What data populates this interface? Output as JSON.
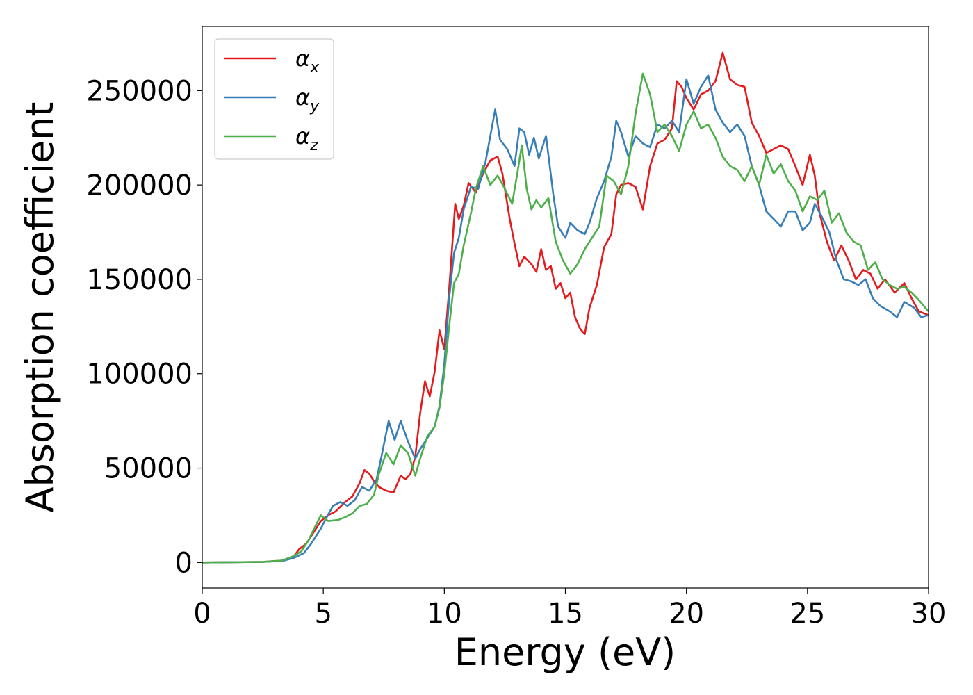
{
  "chart_data": {
    "type": "line",
    "title": "",
    "xlabel": "Energy (eV)",
    "ylabel": "Absorption coefficient",
    "xlim": [
      0,
      30
    ],
    "ylim": [
      -13500,
      284000
    ],
    "xticks": [
      0,
      5,
      10,
      15,
      20,
      25,
      30
    ],
    "yticks": [
      0,
      50000,
      100000,
      150000,
      200000,
      250000
    ],
    "grid": false,
    "legend_position": "upper-left",
    "series": [
      {
        "name": "αx",
        "label_base": "α",
        "label_sub": "x",
        "color": "#e41a1c",
        "points": [
          [
            0,
            0
          ],
          [
            2.5,
            300
          ],
          [
            3.3,
            1000
          ],
          [
            3.8,
            3500
          ],
          [
            4.0,
            7000
          ],
          [
            4.3,
            10000
          ],
          [
            4.6,
            16000
          ],
          [
            4.9,
            22000
          ],
          [
            5.2,
            25000
          ],
          [
            5.5,
            27000
          ],
          [
            5.9,
            32000
          ],
          [
            6.2,
            35000
          ],
          [
            6.5,
            42000
          ],
          [
            6.7,
            49000
          ],
          [
            6.9,
            47000
          ],
          [
            7.1,
            43000
          ],
          [
            7.3,
            40000
          ],
          [
            7.6,
            38000
          ],
          [
            7.9,
            37000
          ],
          [
            8.2,
            46000
          ],
          [
            8.4,
            44000
          ],
          [
            8.6,
            47000
          ],
          [
            8.8,
            56000
          ],
          [
            9.0,
            79000
          ],
          [
            9.2,
            96000
          ],
          [
            9.4,
            88000
          ],
          [
            9.6,
            101000
          ],
          [
            9.8,
            123000
          ],
          [
            10.0,
            113000
          ],
          [
            10.2,
            145000
          ],
          [
            10.45,
            190000
          ],
          [
            10.6,
            182000
          ],
          [
            10.8,
            189000
          ],
          [
            11.0,
            201000
          ],
          [
            11.3,
            196000
          ],
          [
            11.6,
            206000
          ],
          [
            11.9,
            213000
          ],
          [
            12.2,
            215000
          ],
          [
            12.4,
            206000
          ],
          [
            12.7,
            182000
          ],
          [
            12.9,
            169000
          ],
          [
            13.1,
            157000
          ],
          [
            13.3,
            162000
          ],
          [
            13.6,
            158000
          ],
          [
            13.8,
            154000
          ],
          [
            14.0,
            166000
          ],
          [
            14.2,
            155000
          ],
          [
            14.4,
            157000
          ],
          [
            14.6,
            145000
          ],
          [
            14.8,
            148000
          ],
          [
            15.0,
            140000
          ],
          [
            15.2,
            143000
          ],
          [
            15.4,
            130000
          ],
          [
            15.6,
            124000
          ],
          [
            15.8,
            121000
          ],
          [
            16.0,
            135000
          ],
          [
            16.3,
            147000
          ],
          [
            16.6,
            167000
          ],
          [
            16.9,
            174000
          ],
          [
            17.1,
            195000
          ],
          [
            17.3,
            200000
          ],
          [
            17.6,
            201000
          ],
          [
            17.9,
            199000
          ],
          [
            18.2,
            187000
          ],
          [
            18.5,
            210000
          ],
          [
            18.8,
            222000
          ],
          [
            19.1,
            224000
          ],
          [
            19.4,
            230000
          ],
          [
            19.6,
            255000
          ],
          [
            19.8,
            252000
          ],
          [
            20.0,
            246000
          ],
          [
            20.3,
            240000
          ],
          [
            20.6,
            248000
          ],
          [
            20.9,
            250000
          ],
          [
            21.2,
            255000
          ],
          [
            21.5,
            270000
          ],
          [
            21.8,
            256000
          ],
          [
            22.1,
            253000
          ],
          [
            22.4,
            252000
          ],
          [
            22.7,
            233000
          ],
          [
            23.0,
            226000
          ],
          [
            23.3,
            217000
          ],
          [
            23.6,
            219000
          ],
          [
            23.9,
            221000
          ],
          [
            24.2,
            219000
          ],
          [
            24.5,
            210000
          ],
          [
            24.8,
            200000
          ],
          [
            25.1,
            216000
          ],
          [
            25.3,
            205000
          ],
          [
            25.5,
            185000
          ],
          [
            25.8,
            170000
          ],
          [
            26.1,
            160000
          ],
          [
            26.4,
            168000
          ],
          [
            26.7,
            160000
          ],
          [
            27.0,
            150000
          ],
          [
            27.3,
            155000
          ],
          [
            27.6,
            153000
          ],
          [
            27.9,
            145000
          ],
          [
            28.2,
            150000
          ],
          [
            28.6,
            143000
          ],
          [
            29.0,
            148000
          ],
          [
            29.3,
            140000
          ],
          [
            29.6,
            133000
          ],
          [
            30.0,
            131000
          ]
        ]
      },
      {
        "name": "αy",
        "label_base": "α",
        "label_sub": "y",
        "color": "#377eb8",
        "points": [
          [
            0,
            0
          ],
          [
            2.5,
            300
          ],
          [
            3.3,
            800
          ],
          [
            3.8,
            2500
          ],
          [
            4.2,
            5000
          ],
          [
            4.5,
            10000
          ],
          [
            4.9,
            18000
          ],
          [
            5.1,
            23000
          ],
          [
            5.4,
            30000
          ],
          [
            5.7,
            32000
          ],
          [
            6.0,
            30000
          ],
          [
            6.3,
            33000
          ],
          [
            6.6,
            40000
          ],
          [
            6.9,
            38000
          ],
          [
            7.2,
            44000
          ],
          [
            7.4,
            56000
          ],
          [
            7.7,
            75000
          ],
          [
            7.95,
            65000
          ],
          [
            8.2,
            75000
          ],
          [
            8.5,
            64000
          ],
          [
            8.8,
            55000
          ],
          [
            9.0,
            60000
          ],
          [
            9.3,
            66000
          ],
          [
            9.6,
            72000
          ],
          [
            9.8,
            83000
          ],
          [
            10.0,
            105000
          ],
          [
            10.2,
            140000
          ],
          [
            10.4,
            164000
          ],
          [
            10.6,
            172000
          ],
          [
            10.8,
            187000
          ],
          [
            11.1,
            199000
          ],
          [
            11.4,
            198000
          ],
          [
            11.7,
            212000
          ],
          [
            11.9,
            226000
          ],
          [
            12.1,
            240000
          ],
          [
            12.3,
            224000
          ],
          [
            12.6,
            219000
          ],
          [
            12.9,
            210000
          ],
          [
            13.1,
            230000
          ],
          [
            13.3,
            228000
          ],
          [
            13.5,
            216000
          ],
          [
            13.7,
            225000
          ],
          [
            13.9,
            214000
          ],
          [
            14.2,
            226000
          ],
          [
            14.5,
            195000
          ],
          [
            14.7,
            178000
          ],
          [
            15.0,
            172000
          ],
          [
            15.2,
            180000
          ],
          [
            15.5,
            176000
          ],
          [
            15.8,
            174000
          ],
          [
            16.0,
            180000
          ],
          [
            16.3,
            193000
          ],
          [
            16.6,
            202000
          ],
          [
            16.9,
            215000
          ],
          [
            17.1,
            234000
          ],
          [
            17.3,
            228000
          ],
          [
            17.6,
            215000
          ],
          [
            17.9,
            226000
          ],
          [
            18.2,
            222000
          ],
          [
            18.5,
            220000
          ],
          [
            18.8,
            232000
          ],
          [
            19.1,
            230000
          ],
          [
            19.4,
            234000
          ],
          [
            19.7,
            228000
          ],
          [
            20.0,
            256000
          ],
          [
            20.3,
            243000
          ],
          [
            20.6,
            252000
          ],
          [
            20.9,
            258000
          ],
          [
            21.2,
            240000
          ],
          [
            21.5,
            233000
          ],
          [
            21.8,
            228000
          ],
          [
            22.1,
            232000
          ],
          [
            22.4,
            226000
          ],
          [
            22.7,
            210000
          ],
          [
            23.0,
            200000
          ],
          [
            23.3,
            186000
          ],
          [
            23.6,
            182000
          ],
          [
            23.9,
            178000
          ],
          [
            24.2,
            186000
          ],
          [
            24.5,
            186000
          ],
          [
            24.8,
            176000
          ],
          [
            25.1,
            180000
          ],
          [
            25.3,
            190000
          ],
          [
            25.6,
            183000
          ],
          [
            25.9,
            175000
          ],
          [
            26.2,
            160000
          ],
          [
            26.5,
            150000
          ],
          [
            26.8,
            149000
          ],
          [
            27.1,
            147000
          ],
          [
            27.4,
            150000
          ],
          [
            27.7,
            140000
          ],
          [
            28.0,
            136000
          ],
          [
            28.4,
            133000
          ],
          [
            28.7,
            130000
          ],
          [
            29.0,
            138000
          ],
          [
            29.4,
            135000
          ],
          [
            29.7,
            130000
          ],
          [
            30.0,
            131000
          ]
        ]
      },
      {
        "name": "αz",
        "label_base": "α",
        "label_sub": "z",
        "color": "#4daf4a",
        "points": [
          [
            0,
            0
          ],
          [
            2.5,
            300
          ],
          [
            3.3,
            1000
          ],
          [
            3.8,
            3500
          ],
          [
            4.1,
            6000
          ],
          [
            4.4,
            12000
          ],
          [
            4.7,
            20000
          ],
          [
            4.9,
            25000
          ],
          [
            5.2,
            22000
          ],
          [
            5.6,
            22500
          ],
          [
            5.9,
            24000
          ],
          [
            6.2,
            26000
          ],
          [
            6.5,
            30000
          ],
          [
            6.8,
            31000
          ],
          [
            7.1,
            36000
          ],
          [
            7.3,
            47000
          ],
          [
            7.6,
            58000
          ],
          [
            7.9,
            52000
          ],
          [
            8.2,
            62000
          ],
          [
            8.5,
            58000
          ],
          [
            8.8,
            46000
          ],
          [
            9.0,
            55000
          ],
          [
            9.3,
            67000
          ],
          [
            9.6,
            72000
          ],
          [
            9.8,
            82000
          ],
          [
            10.0,
            100000
          ],
          [
            10.2,
            125000
          ],
          [
            10.4,
            148000
          ],
          [
            10.6,
            153000
          ],
          [
            10.8,
            168000
          ],
          [
            11.1,
            185000
          ],
          [
            11.3,
            198000
          ],
          [
            11.6,
            210000
          ],
          [
            11.9,
            200000
          ],
          [
            12.2,
            205000
          ],
          [
            12.5,
            198000
          ],
          [
            12.8,
            190000
          ],
          [
            13.0,
            205000
          ],
          [
            13.2,
            221000
          ],
          [
            13.4,
            198000
          ],
          [
            13.6,
            187000
          ],
          [
            13.8,
            192000
          ],
          [
            14.0,
            188000
          ],
          [
            14.3,
            193000
          ],
          [
            14.6,
            170000
          ],
          [
            14.9,
            160000
          ],
          [
            15.2,
            153000
          ],
          [
            15.5,
            158000
          ],
          [
            15.8,
            166000
          ],
          [
            16.1,
            172000
          ],
          [
            16.4,
            178000
          ],
          [
            16.7,
            205000
          ],
          [
            17.0,
            202000
          ],
          [
            17.3,
            195000
          ],
          [
            17.6,
            210000
          ],
          [
            17.9,
            238000
          ],
          [
            18.2,
            259000
          ],
          [
            18.5,
            248000
          ],
          [
            18.8,
            228000
          ],
          [
            19.1,
            232000
          ],
          [
            19.4,
            226000
          ],
          [
            19.7,
            218000
          ],
          [
            20.0,
            232000
          ],
          [
            20.3,
            239000
          ],
          [
            20.6,
            230000
          ],
          [
            20.9,
            232000
          ],
          [
            21.2,
            225000
          ],
          [
            21.5,
            215000
          ],
          [
            21.8,
            210000
          ],
          [
            22.1,
            208000
          ],
          [
            22.4,
            202000
          ],
          [
            22.7,
            210000
          ],
          [
            23.0,
            200000
          ],
          [
            23.3,
            216000
          ],
          [
            23.6,
            206000
          ],
          [
            23.9,
            211000
          ],
          [
            24.2,
            202000
          ],
          [
            24.5,
            197000
          ],
          [
            24.8,
            186000
          ],
          [
            25.1,
            194000
          ],
          [
            25.4,
            192000
          ],
          [
            25.7,
            197000
          ],
          [
            26.0,
            180000
          ],
          [
            26.3,
            185000
          ],
          [
            26.6,
            175000
          ],
          [
            26.9,
            170000
          ],
          [
            27.2,
            168000
          ],
          [
            27.5,
            155000
          ],
          [
            27.8,
            159000
          ],
          [
            28.1,
            150000
          ],
          [
            28.4,
            147000
          ],
          [
            28.7,
            145000
          ],
          [
            29.0,
            146000
          ],
          [
            29.3,
            143000
          ],
          [
            29.6,
            139000
          ],
          [
            30.0,
            133000
          ]
        ]
      }
    ]
  }
}
